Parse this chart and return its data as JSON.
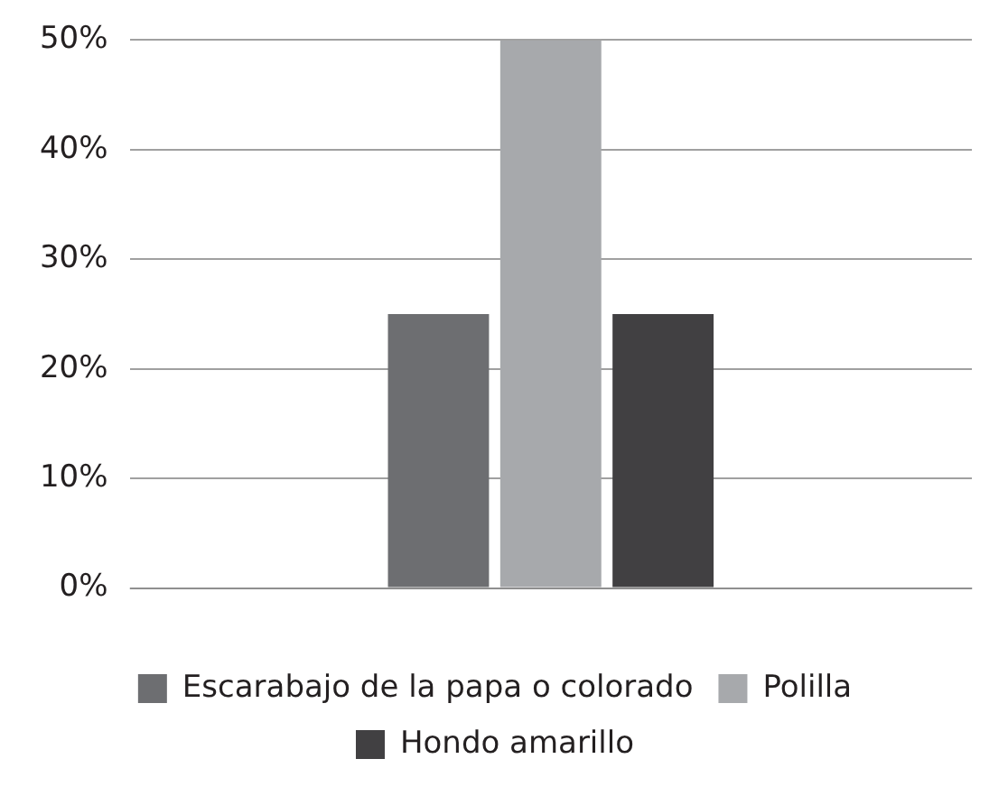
{
  "chart_data": {
    "type": "bar",
    "categories": [
      null
    ],
    "series": [
      {
        "name": "Escarabajo de la papa o colorado",
        "color": "#6d6e71",
        "values": [
          25
        ]
      },
      {
        "name": "Polilla",
        "color": "#a7a9ac",
        "values": [
          50
        ]
      },
      {
        "name": "Hondo amarillo",
        "color": "#414042",
        "values": [
          25
        ]
      }
    ],
    "ylim": [
      0,
      50
    ],
    "yticks": [
      {
        "value": 0,
        "label": "0%"
      },
      {
        "value": 10,
        "label": "10%"
      },
      {
        "value": 20,
        "label": "20%"
      },
      {
        "value": 30,
        "label": "30%"
      },
      {
        "value": 40,
        "label": "40%"
      },
      {
        "value": 50,
        "label": "50%"
      }
    ],
    "grid": "y",
    "legend": "bottom"
  }
}
